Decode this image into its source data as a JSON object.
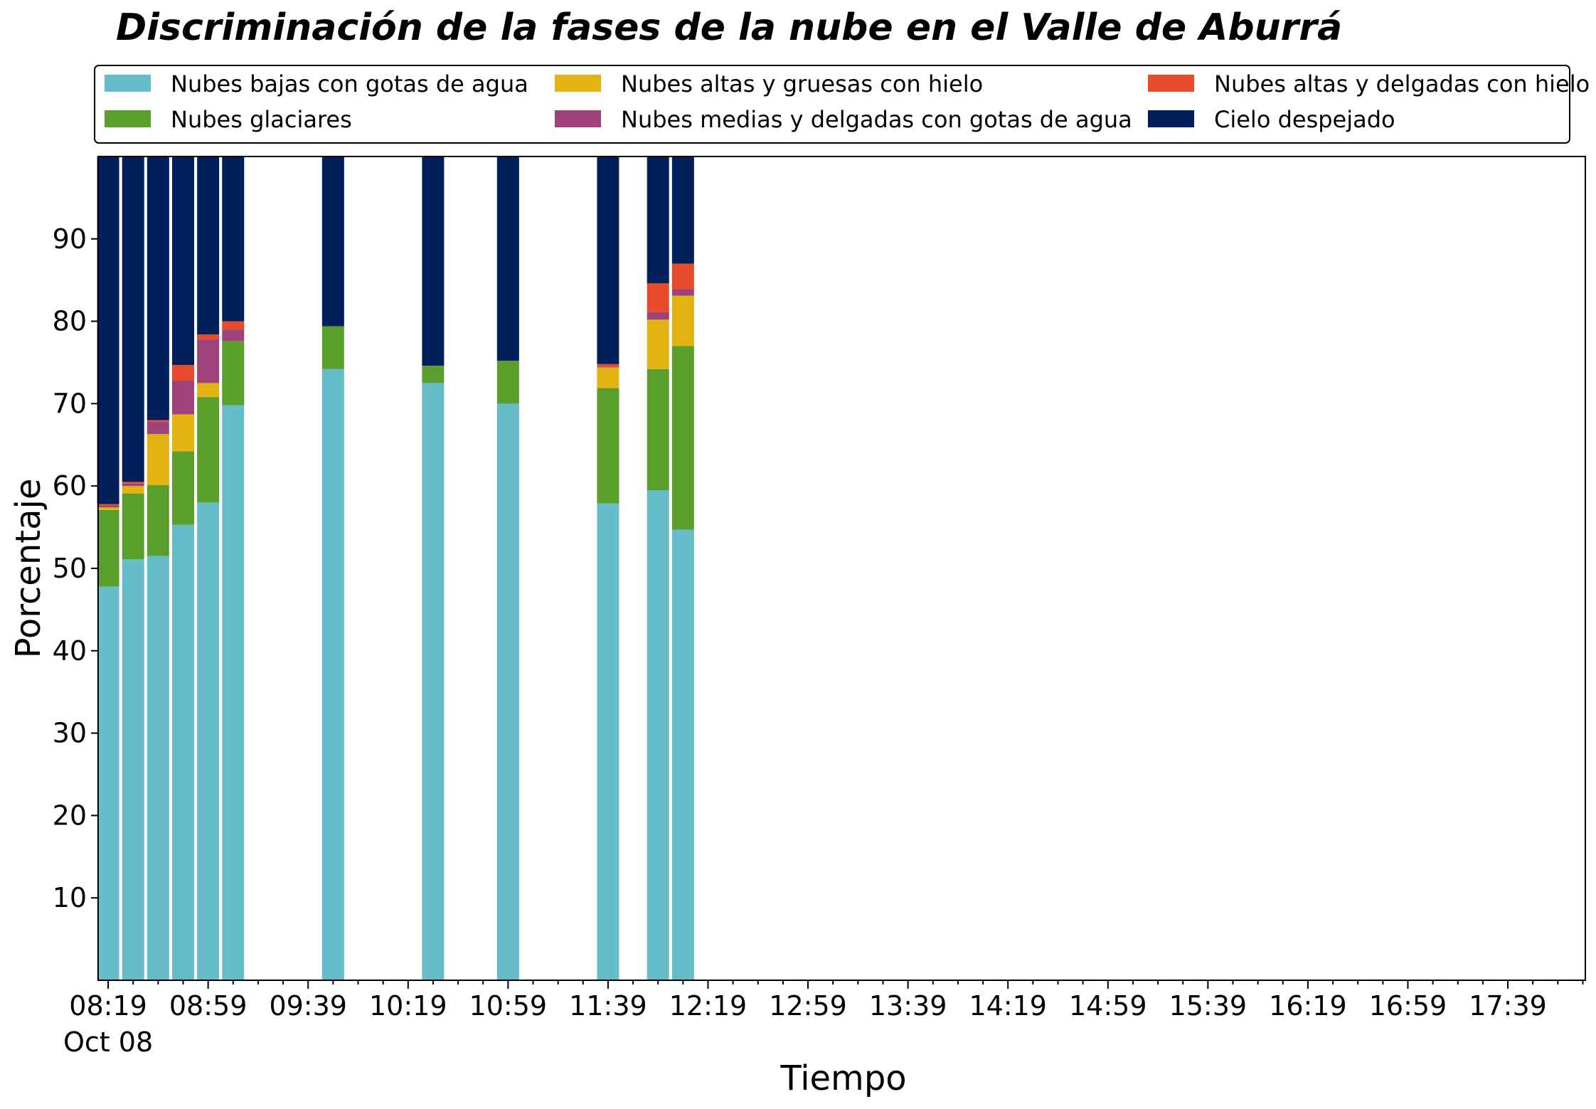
{
  "chart_data": {
    "type": "bar",
    "stacked": true,
    "title": "Discriminación de la fases de la nube en el Valle de Aburrá",
    "xlabel": "Tiempo",
    "ylabel": "Porcentaje",
    "ylim": [
      0,
      100
    ],
    "yticks": [
      10,
      20,
      30,
      40,
      50,
      60,
      70,
      80,
      90
    ],
    "x_start_minutes": 495,
    "x_end_minutes": 1090,
    "x_major_tick_minutes": [
      499,
      539,
      579,
      619,
      659,
      699,
      739,
      779,
      819,
      859,
      899,
      939,
      979,
      1019,
      1059
    ],
    "x_tick_labels": [
      "08:19",
      "08:59",
      "09:39",
      "10:19",
      "10:59",
      "11:39",
      "12:19",
      "12:59",
      "13:39",
      "14:19",
      "14:59",
      "15:39",
      "16:19",
      "16:59",
      "17:39"
    ],
    "x_date_label": "Oct 08",
    "x": [
      499,
      509,
      519,
      529,
      539,
      549,
      589,
      629,
      659,
      699,
      719,
      729
    ],
    "series": [
      {
        "name": "Nubes bajas con gotas de agua",
        "color": "#67bcc9",
        "values": [
          47.8,
          51.1,
          51.5,
          55.3,
          58.0,
          69.8,
          74.2,
          72.5,
          70.0,
          57.9,
          59.5,
          54.7
        ]
      },
      {
        "name": "Nubes glaciares",
        "color": "#5a9e2b",
        "values": [
          9.3,
          8.0,
          8.6,
          8.9,
          12.8,
          7.8,
          5.2,
          2.1,
          5.2,
          14.0,
          14.7,
          22.3
        ]
      },
      {
        "name": "Nubes altas y gruesas con hielo",
        "color": "#e2b312",
        "values": [
          0.3,
          0.9,
          6.2,
          4.5,
          1.7,
          0.0,
          0.0,
          0.0,
          0.0,
          2.5,
          6.0,
          6.1
        ]
      },
      {
        "name": "Nubes medias y delgadas con gotas de agua",
        "color": "#a0427a",
        "values": [
          0.2,
          0.3,
          1.5,
          4.1,
          5.3,
          1.4,
          0.0,
          0.0,
          0.0,
          0.1,
          0.9,
          0.8
        ]
      },
      {
        "name": "Nubes altas y delgadas con hielo",
        "color": "#e84a2c",
        "values": [
          0.2,
          0.2,
          0.2,
          1.9,
          0.6,
          1.0,
          0.0,
          0.0,
          0.0,
          0.3,
          3.5,
          3.1
        ]
      },
      {
        "name": "Cielo despejado",
        "color": "#00205b",
        "values": [
          42.2,
          39.5,
          32.0,
          25.3,
          21.6,
          20.0,
          20.6,
          25.4,
          24.8,
          25.2,
          15.4,
          13.0
        ]
      }
    ],
    "legend": {
      "placement": "top",
      "columns": 3
    }
  }
}
